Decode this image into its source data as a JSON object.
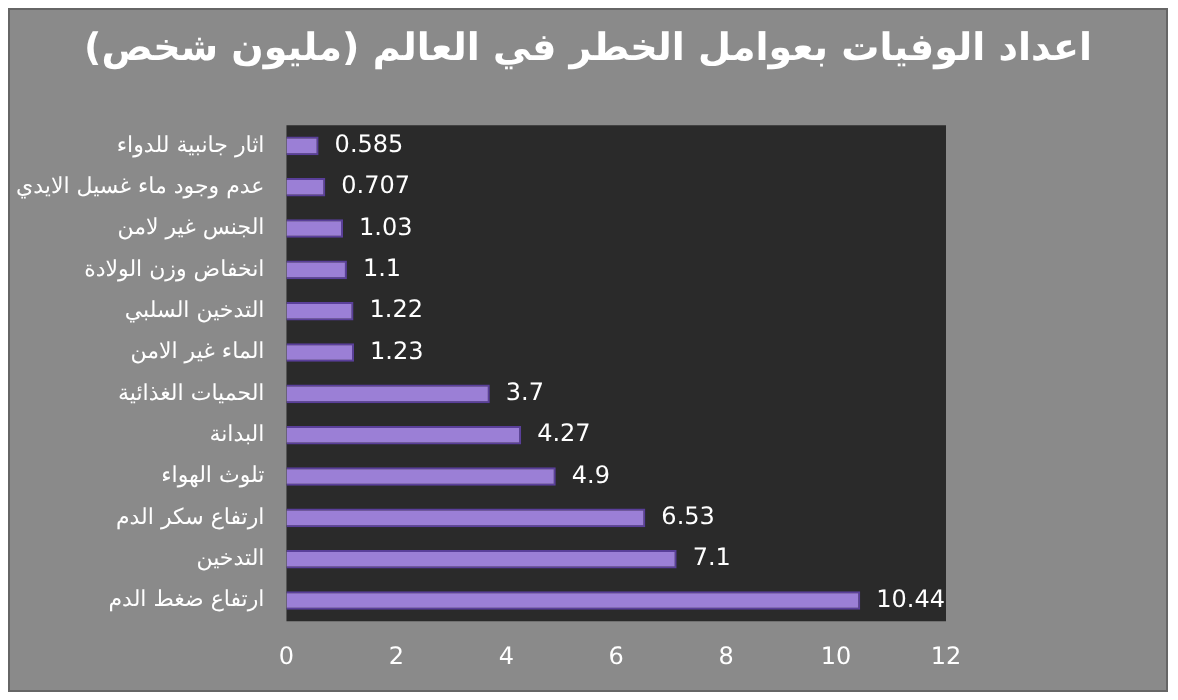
{
  "chart_data": {
    "type": "bar",
    "orientation": "horizontal",
    "title": "اعداد الوفيات بعوامل الخطر في العالم (مليون شخص)",
    "categories": [
      "اثار جانبية للدواء",
      "عدم وجود ماء غسيل الايدي",
      "الجنس غير لامن",
      "انخفاض وزن الولادة",
      "التدخين السلبي",
      "الماء غير الامن",
      "الحميات الغذائية",
      "البدانة",
      "تلوث الهواء",
      "ارتفاع سكر الدم",
      "التدخين",
      "ارتفاع ضغط الدم"
    ],
    "values": [
      0.585,
      0.707,
      1.03,
      1.1,
      1.22,
      1.23,
      3.7,
      4.27,
      4.9,
      6.53,
      7.1,
      10.44
    ],
    "color": "#9b7fd6",
    "xlim": [
      0,
      12
    ],
    "xticks": [
      0,
      2,
      4,
      6,
      8,
      10,
      12
    ],
    "grid": false,
    "data_labels": true
  }
}
